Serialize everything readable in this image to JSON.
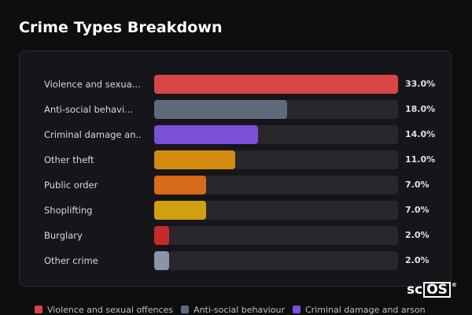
{
  "title": "Crime Types Breakdown",
  "chart_data": {
    "type": "bar",
    "orientation": "horizontal",
    "categories": [
      "Violence and sexual offences",
      "Anti-social behaviour",
      "Criminal damage and arson",
      "Other theft",
      "Public order",
      "Shoplifting",
      "Burglary",
      "Other crime"
    ],
    "display_labels": [
      "Violence and sexua...",
      "Anti-social behavi...",
      "Criminal damage an...",
      "Other theft",
      "Public order",
      "Shoplifting",
      "Burglary",
      "Other crime"
    ],
    "values": [
      33.0,
      18.0,
      14.0,
      11.0,
      7.0,
      7.0,
      2.0,
      2.0
    ],
    "value_labels": [
      "33.0%",
      "18.0%",
      "14.0%",
      "11.0%",
      "7.0%",
      "7.0%",
      "2.0%",
      "2.0%"
    ],
    "xlim": [
      0,
      33.0
    ],
    "colors": [
      "#d94545",
      "#5e6a7c",
      "#7b4fd6",
      "#d38b12",
      "#d96a1a",
      "#d0a012",
      "#c42a2a",
      "#8a96a8"
    ],
    "legend_position": "bottom",
    "grid": false
  },
  "legend": [
    {
      "label": "Violence and sexual offences",
      "color": "#d94545"
    },
    {
      "label": "Anti-social behaviour",
      "color": "#5e6a7c"
    },
    {
      "label": "Criminal damage and arson",
      "color": "#7b4fd6"
    }
  ],
  "logo": {
    "prefix": "sc",
    "boxed": "OS",
    "mark": "®"
  }
}
